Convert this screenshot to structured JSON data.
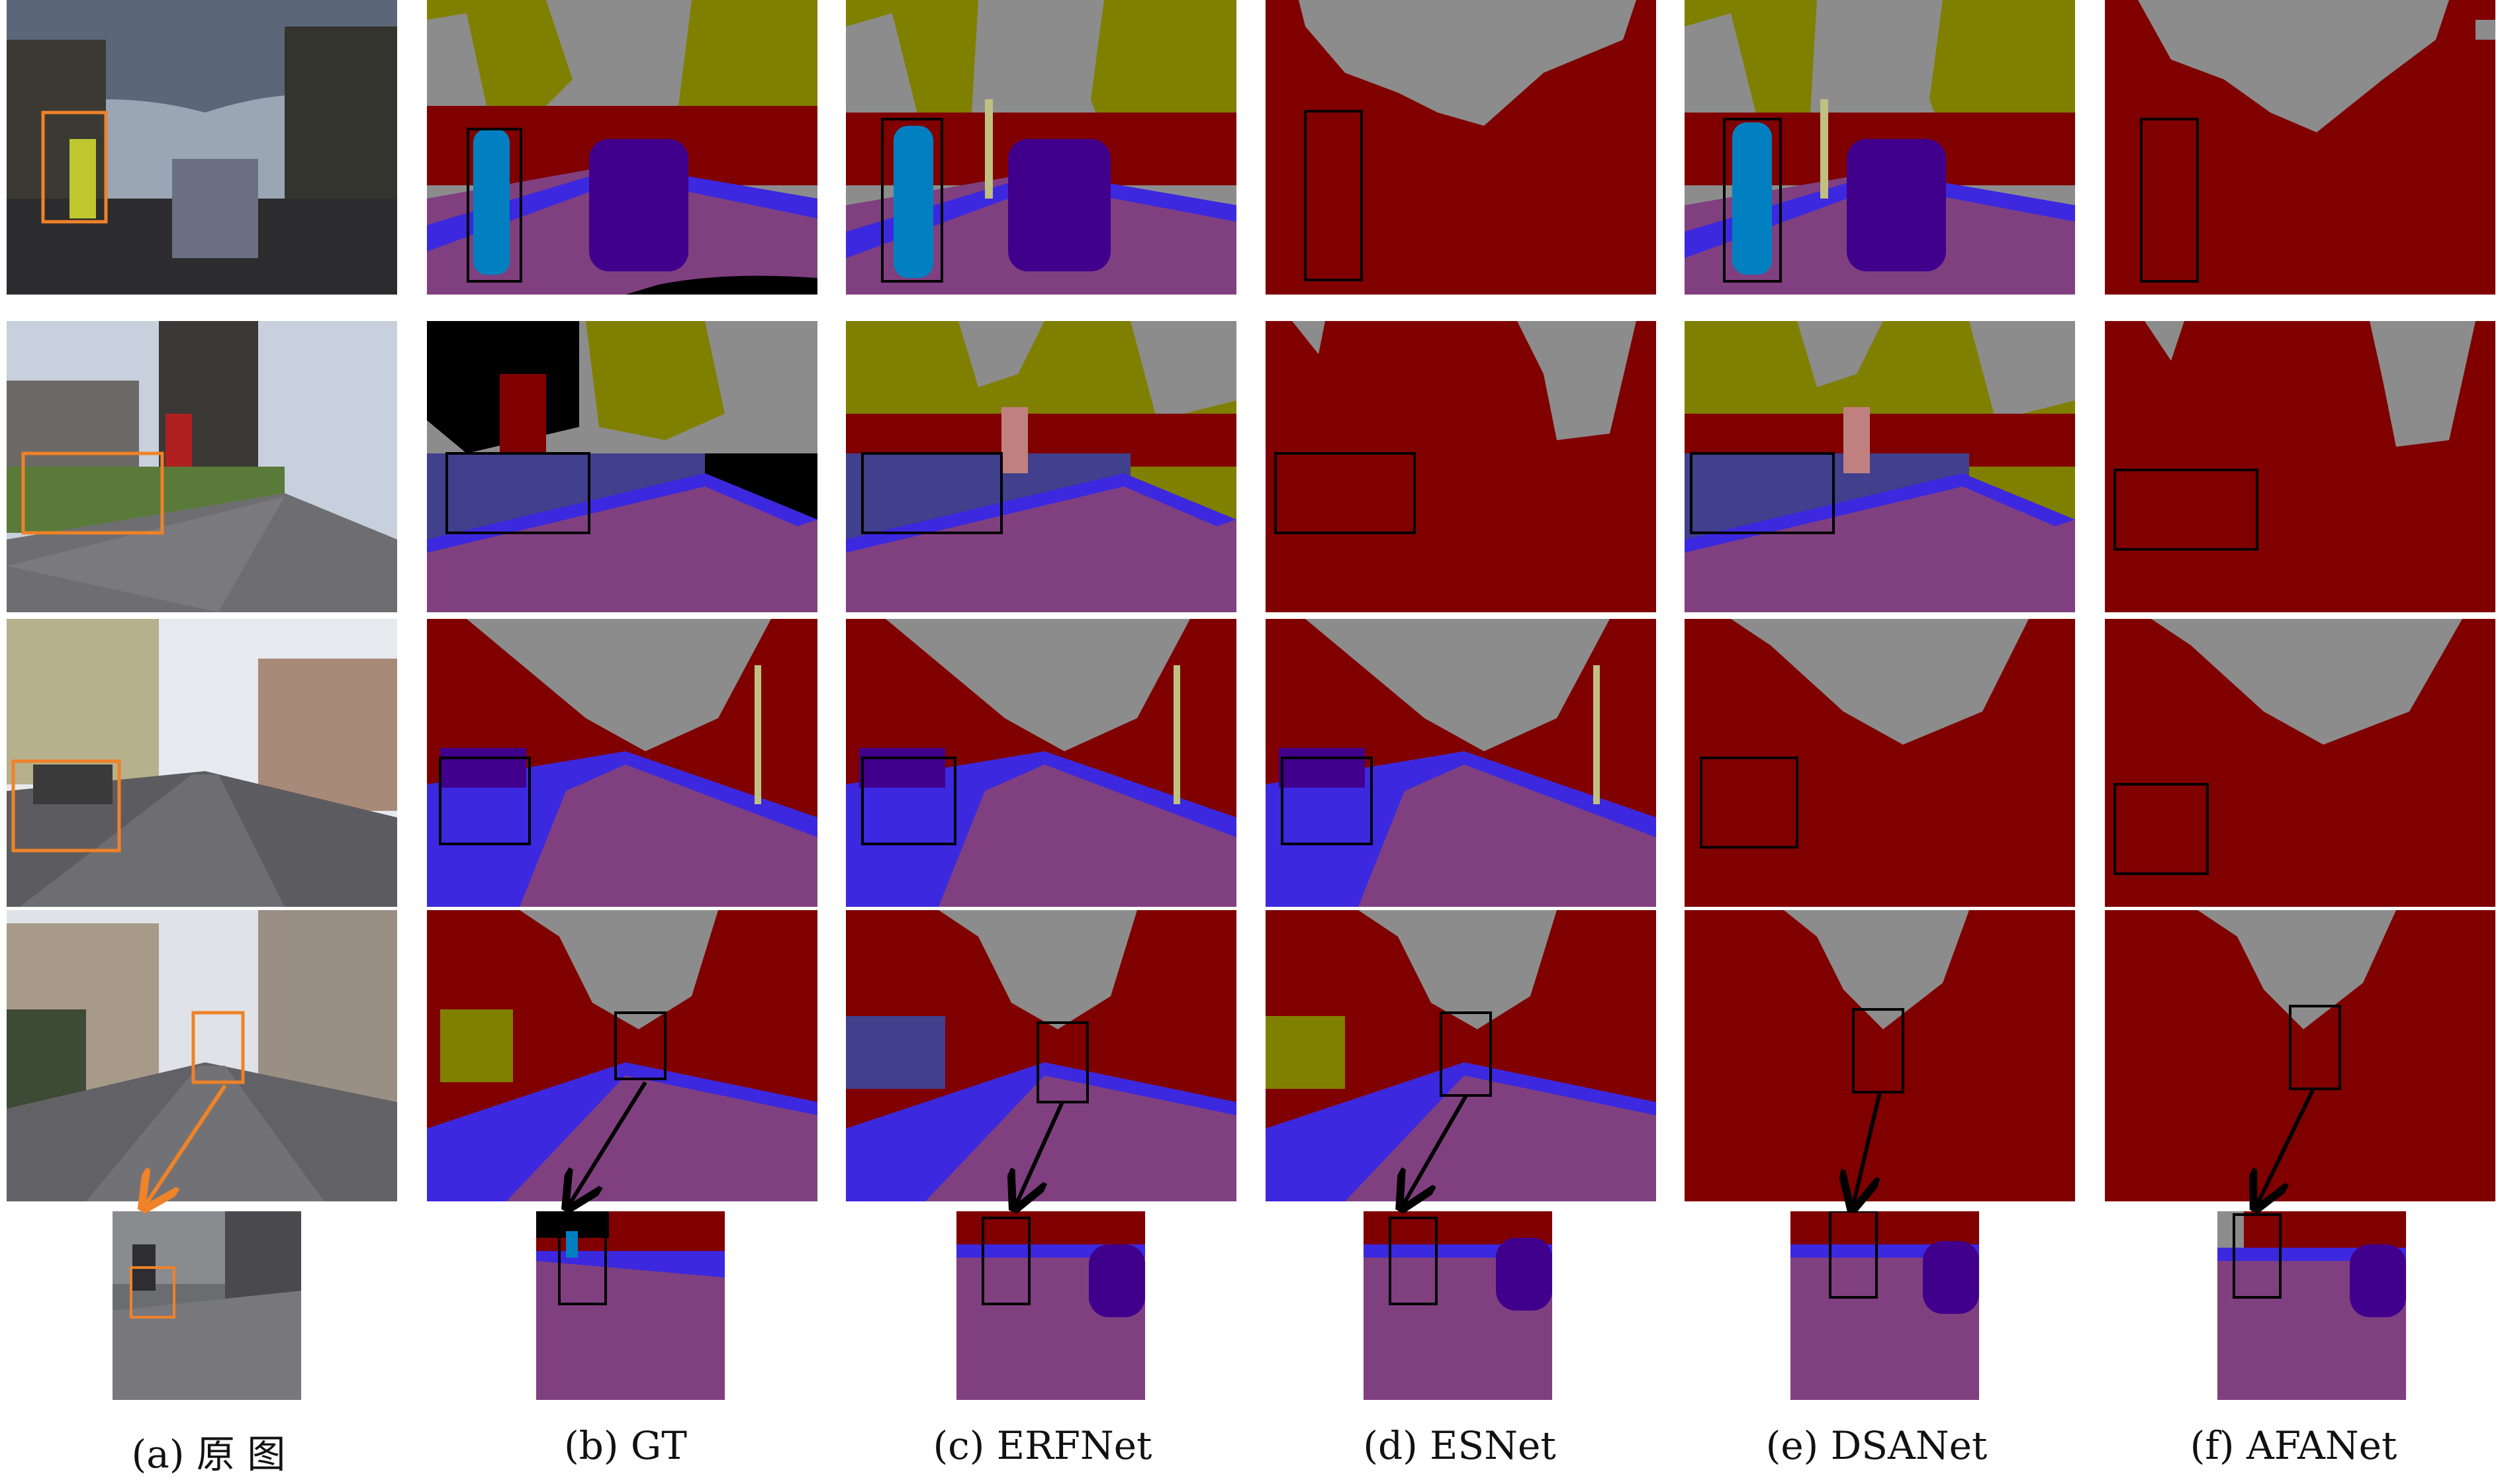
{
  "captions": {
    "a": "(a) 原 图",
    "b": "(b) GT",
    "c": "(c) ERFNet",
    "d": "(d) ESNet",
    "e": "(e) DSANet",
    "f": "(f) AFANet"
  },
  "colors": {
    "sky": "#8c8c8c",
    "building": "#800000",
    "tree": "#808000",
    "road": "#804080",
    "sidewalk": "#3c28de",
    "car": "#40008c",
    "pedestrian": "#0080c0",
    "pole": "#c0c080",
    "sign": "#c08080",
    "void": "#000000",
    "fence": "#40408c",
    "highlight_box_original": "#f08228",
    "highlight_box_result": "#000000"
  }
}
